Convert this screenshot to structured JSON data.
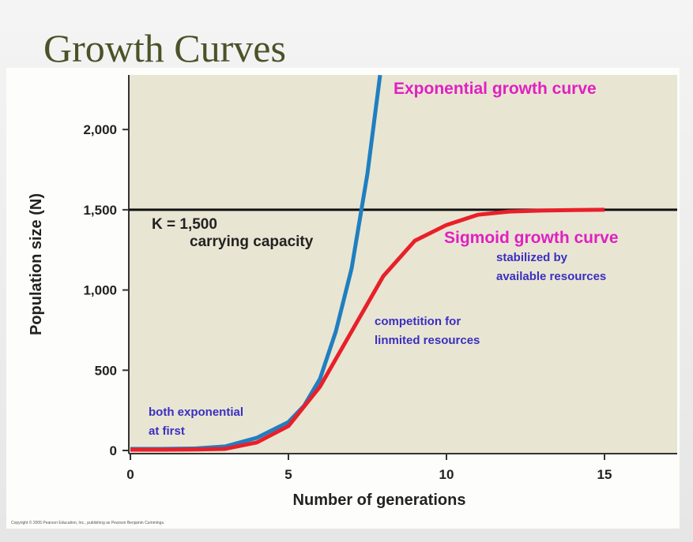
{
  "chart_data": {
    "type": "line",
    "title": "Growth Curves",
    "x_label": "Number of generations",
    "y_label": "Population size (N)",
    "xlim": [
      0,
      17.3
    ],
    "ylim": [
      0,
      2340
    ],
    "xticks": [
      0,
      5,
      10,
      15
    ],
    "yticks": [
      0,
      500,
      {
        "value": 1000,
        "label": "1,000"
      },
      {
        "value": 1500,
        "label": "1,500"
      },
      {
        "value": 2000,
        "label": "2,000"
      }
    ],
    "series": [
      {
        "name": "Exponential growth curve",
        "color": "#1f7fc0",
        "x": [
          0,
          1,
          2,
          3,
          4,
          5,
          5.5,
          6,
          6.5,
          7,
          7.5,
          7.9
        ],
        "values": [
          10,
          10,
          12,
          25,
          79,
          177,
          280,
          447,
          742,
          1135,
          1725,
          2339
        ]
      },
      {
        "name": "Sigmoid growth curve",
        "color": "#e8202a",
        "x": [
          0,
          1,
          2,
          3,
          4,
          5,
          6,
          7,
          8,
          9,
          10,
          11,
          12,
          13,
          14,
          15
        ],
        "values": [
          5,
          5,
          6,
          10,
          50,
          152,
          398,
          742,
          1086,
          1307,
          1405,
          1469,
          1489,
          1495,
          1498,
          1500
        ]
      }
    ],
    "reference_line": {
      "value": 1500,
      "label": "K = 1,500",
      "sublabel": "carrying capacity"
    },
    "annotations": [
      [
        "stabilized by",
        "available resources"
      ],
      [
        "competition for",
        "linmited resources"
      ],
      [
        "both exponential",
        "at first"
      ]
    ],
    "copyright": "Copyright © 2005 Pearson Education, Inc., publishing as Pearson Benjamin Cummings."
  }
}
